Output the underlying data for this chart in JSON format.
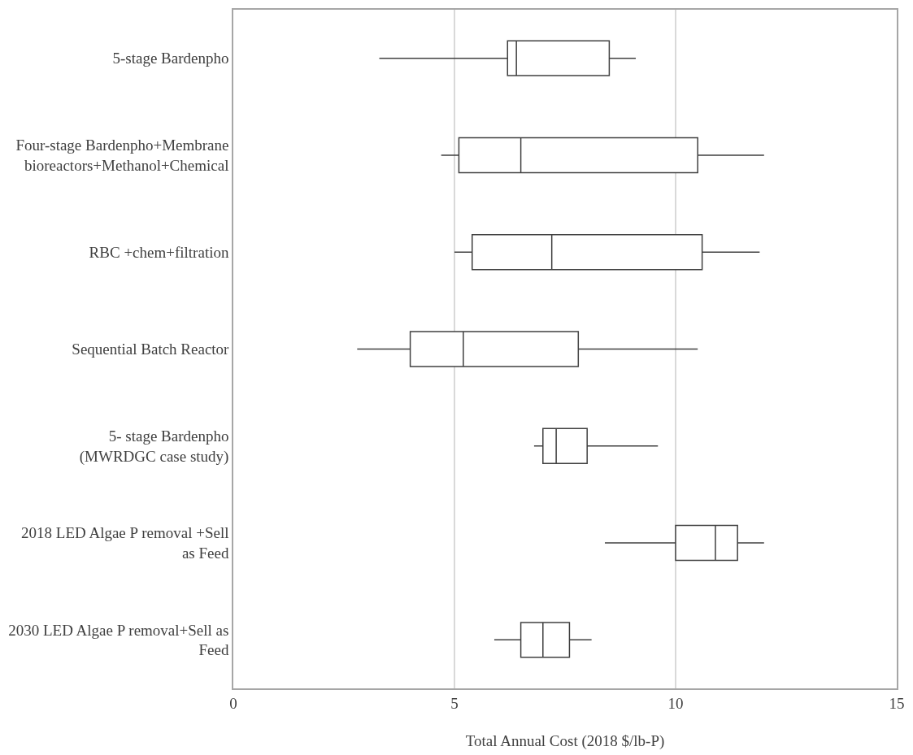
{
  "chart_data": {
    "type": "box",
    "orientation": "horizontal",
    "xlabel": "Total Annual Cost (2018 $/lb-P)",
    "categories": [
      "5-stage Bardenpho",
      "Four-stage Bardenpho+Membrane\nbioreactors+Methanol+Chemical",
      "RBC +chem+filtration",
      "Sequential Batch Reactor",
      "5- stage Bardenpho\n(MWRDGC case study)",
      "2018 LED Algae P removal +Sell\nas Feed",
      "2030 LED Algae P removal+Sell as\nFeed"
    ],
    "boxes": [
      {
        "low": 3.3,
        "q1": 6.2,
        "median": 6.4,
        "q3": 8.5,
        "high": 9.1
      },
      {
        "low": 4.7,
        "q1": 5.1,
        "median": 6.5,
        "q3": 10.5,
        "high": 12.0
      },
      {
        "low": 5.0,
        "q1": 5.4,
        "median": 7.2,
        "q3": 10.6,
        "high": 11.9
      },
      {
        "low": 2.8,
        "q1": 4.0,
        "median": 5.2,
        "q3": 7.8,
        "high": 10.5
      },
      {
        "low": 6.8,
        "q1": 7.0,
        "median": 7.3,
        "q3": 8.0,
        "high": 9.6
      },
      {
        "low": 8.4,
        "q1": 10.0,
        "median": 10.9,
        "q3": 11.4,
        "high": 12.0
      },
      {
        "low": 5.9,
        "q1": 6.5,
        "median": 7.0,
        "q3": 7.6,
        "high": 8.1
      }
    ],
    "color": "#404040",
    "xlim": [
      0,
      15
    ],
    "xticks": [
      0,
      5,
      10,
      15
    ],
    "grid": "x"
  }
}
